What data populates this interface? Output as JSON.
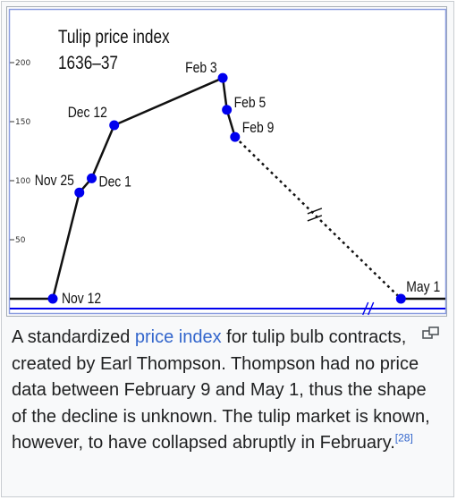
{
  "chart_data": {
    "type": "line",
    "title_line1": "Tulip price index",
    "title_line2": "1636–37",
    "yticks": [
      {
        "value": 200,
        "label": "200"
      },
      {
        "value": 150,
        "label": "150"
      },
      {
        "value": 100,
        "label": "100"
      },
      {
        "value": 50,
        "label": "50"
      }
    ],
    "ylim": [
      0,
      210
    ],
    "baseline_value": 0,
    "points": [
      {
        "label": "Nov 12",
        "date": "1636-11-12",
        "value": 0
      },
      {
        "label": "Nov 25",
        "date": "1636-11-25",
        "value": 90
      },
      {
        "label": "Dec 1",
        "date": "1636-12-01",
        "value": 102
      },
      {
        "label": "Dec 12",
        "date": "1636-12-12",
        "value": 147
      },
      {
        "label": "Feb 3",
        "date": "1637-02-03",
        "value": 187
      },
      {
        "label": "Feb 5",
        "date": "1637-02-05",
        "value": 160
      },
      {
        "label": "Feb 9",
        "date": "1637-02-09",
        "value": 137
      },
      {
        "label": "May 1",
        "date": "1637-05-01",
        "value": 0
      }
    ],
    "colors": {
      "line": "#111111",
      "marker": "#0000ee",
      "axis": "#0000ee",
      "frame": "#8c9ee0"
    },
    "grid": false,
    "legend": "none",
    "note": "Break marks (//) indicate an interval with no data between Feb 9 and May 1 (dashed segment)"
  },
  "caption": {
    "text_before": "A standardized ",
    "link_text": "price index",
    "text_after": " for tulip bulb contracts, created by Earl Thompson. Thompson had no price data between February 9 and May 1, thus the shape of the decline is unknown. The tulip market is known, however, to have collapsed abruptly in February.",
    "ref": "[28]"
  },
  "icons": {
    "magnify": "magnify-icon"
  }
}
